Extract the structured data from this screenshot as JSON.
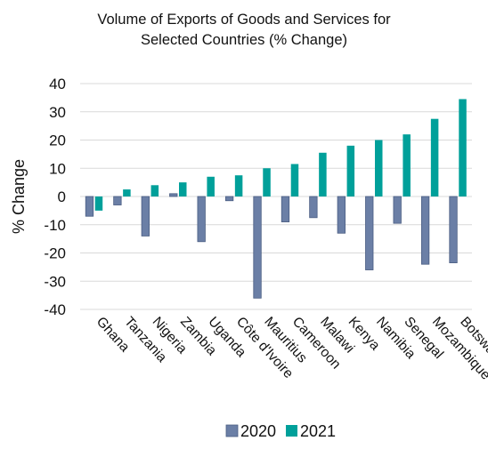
{
  "chart_data": {
    "type": "bar",
    "title": "Volume of Exports of Goods and Services for Selected Countries (% Change)",
    "title_lines": [
      "Volume of Exports of Goods and Services for",
      "Selected Countries (% Change)"
    ],
    "xlabel": "",
    "ylabel": "% Change",
    "ylim": [
      -40,
      40
    ],
    "yticks": [
      40,
      30,
      20,
      10,
      0,
      -10,
      -20,
      -30,
      -40
    ],
    "categories": [
      "Ghana",
      "Tanzania",
      "Nigeria",
      "Zambia",
      "Uganda",
      "Côte d'Ivoire",
      "Mauritius",
      "Cameroon",
      "Malawi",
      "Kenya",
      "Namibia",
      "Senegal",
      "Mozambique",
      "Botswana"
    ],
    "series": [
      {
        "name": "2020",
        "color": "#6b7fa6",
        "values": [
          -7,
          -3,
          -14,
          1,
          -16,
          -1.5,
          -36,
          -9,
          -7.5,
          -13,
          -26,
          -9.5,
          -24,
          -23.5
        ]
      },
      {
        "name": "2021",
        "color": "#00a09a",
        "values": [
          -5,
          2.5,
          4,
          5,
          7,
          7.5,
          10,
          11.5,
          15.5,
          18,
          20,
          22,
          27.5,
          34.5
        ]
      }
    ],
    "grid": "horizontal",
    "legend_position": "bottom"
  }
}
